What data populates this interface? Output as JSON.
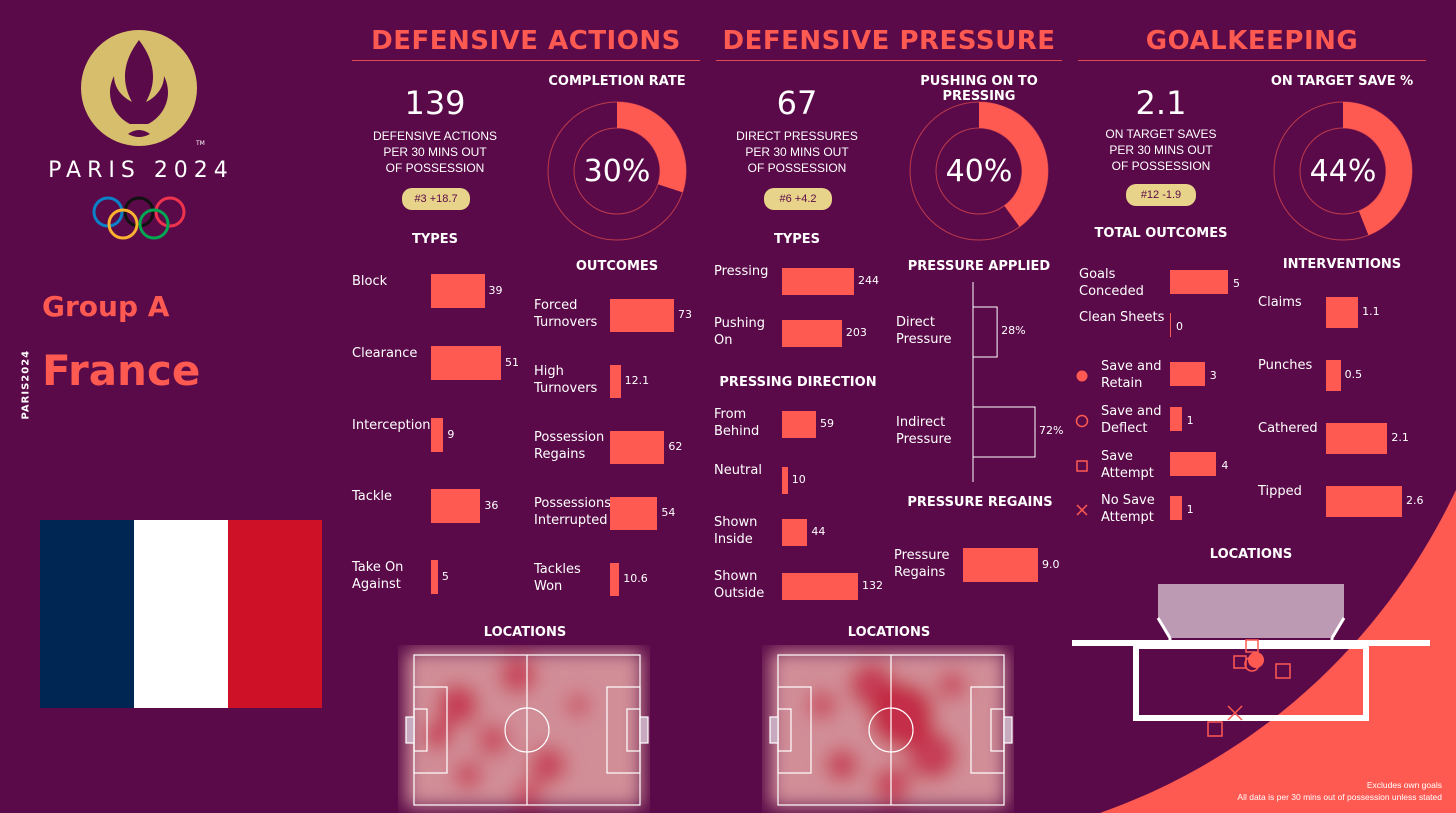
{
  "brand": {
    "games": "PARIS 2024",
    "tm": "TM",
    "vertical": "PARIS2024"
  },
  "team": {
    "group": "Group A",
    "name": "France"
  },
  "colors": {
    "bg": "#5a0a48",
    "accent": "#ff5a52",
    "gold": "#d7be6d",
    "pill": "#e8d38a"
  },
  "defensive_actions": {
    "title": "DEFENSIVE ACTIONS",
    "value": "139",
    "caption": [
      "DEFENSIVE ACTIONS",
      "PER 30 MINS OUT",
      "OF POSSESSION"
    ],
    "rank": "#3 +18.7",
    "completion_title": "COMPLETION RATE",
    "completion_label": "30%",
    "types_title": "TYPES",
    "outcomes_title": "OUTCOMES",
    "locations_title": "LOCATIONS"
  },
  "defensive_pressure": {
    "title": "DEFENSIVE PRESSURE",
    "value": "67",
    "caption": [
      "DIRECT PRESSURES",
      "PER 30 MINS OUT",
      "OF POSSESSION"
    ],
    "rank": "#6 +4.2",
    "pushing_title": "PUSHING ON TO PRESSING",
    "pushing_label": "40%",
    "types_title": "TYPES",
    "direction_title": "PRESSING DIRECTION",
    "applied_title": "PRESSURE APPLIED",
    "regains_title": "PRESSURE REGAINS",
    "locations_title": "LOCATIONS"
  },
  "goalkeeping": {
    "title": "GOALKEEPING",
    "value": "2.1",
    "caption": [
      "ON TARGET SAVES",
      "PER 30 MINS OUT",
      "OF POSSESSION"
    ],
    "rank": "#12 -1.9",
    "save_title": "ON TARGET SAVE %",
    "save_label": "44%",
    "total_title": "TOTAL OUTCOMES",
    "interventions_title": "INTERVENTIONS",
    "locations_title": "LOCATIONS"
  },
  "footnotes": [
    "Excludes own goals",
    "All data is per 30 mins out of possession unless stated"
  ],
  "chart_data": [
    {
      "type": "pie",
      "title": "COMPLETION RATE",
      "values": [
        30,
        70
      ]
    },
    {
      "type": "bar",
      "title": "TYPES",
      "categories": [
        "Block",
        "Clearance",
        "Interception",
        "Tackle",
        "Take On Against"
      ],
      "values": [
        39,
        51,
        9,
        36,
        5
      ]
    },
    {
      "type": "bar",
      "title": "OUTCOMES",
      "categories": [
        "Forced Turnovers",
        "High Turnovers",
        "Possession Regains",
        "Possessions Interrupted",
        "Tackles Won"
      ],
      "values": [
        73,
        12.1,
        62,
        54,
        10.6
      ]
    },
    {
      "type": "heatmap",
      "title": "LOCATIONS"
    },
    {
      "type": "pie",
      "title": "PUSHING ON TO PRESSING",
      "values": [
        40,
        60
      ]
    },
    {
      "type": "bar",
      "title": "TYPES",
      "categories": [
        "Pressing",
        "Pushing On"
      ],
      "values": [
        244,
        203
      ]
    },
    {
      "type": "bar",
      "title": "PRESSING DIRECTION",
      "categories": [
        "From Behind",
        "Neutral",
        "Shown Inside",
        "Shown Outside"
      ],
      "values": [
        59,
        10,
        44,
        132
      ]
    },
    {
      "type": "bar",
      "title": "PRESSURE APPLIED",
      "categories": [
        "Direct Pressure",
        "Indirect Pressure"
      ],
      "values": [
        28,
        72
      ],
      "labels": [
        "28%",
        "72%"
      ]
    },
    {
      "type": "bar",
      "title": "PRESSURE REGAINS",
      "categories": [
        "Pressure Regains"
      ],
      "values": [
        9.0
      ],
      "labels": [
        "9.0"
      ]
    },
    {
      "type": "heatmap",
      "title": "LOCATIONS"
    },
    {
      "type": "pie",
      "title": "ON TARGET SAVE %",
      "values": [
        44,
        56
      ]
    },
    {
      "type": "bar",
      "title": "TOTAL OUTCOMES",
      "categories": [
        "Goals Conceded",
        "Clean Sheets",
        "Save and Retain",
        "Save and Deflect",
        "Save Attempt",
        "No Save Attempt"
      ],
      "values": [
        5,
        0,
        3,
        1,
        4,
        1
      ],
      "markers": [
        "",
        "",
        "filled-circle",
        "open-circle",
        "open-square",
        "cross"
      ]
    },
    {
      "type": "bar",
      "title": "INTERVENTIONS",
      "categories": [
        "Claims",
        "Punches",
        "Cathered",
        "Tipped"
      ],
      "values": [
        1.1,
        0.5,
        2.1,
        2.6
      ]
    },
    {
      "type": "scatter",
      "title": "LOCATIONS"
    }
  ]
}
